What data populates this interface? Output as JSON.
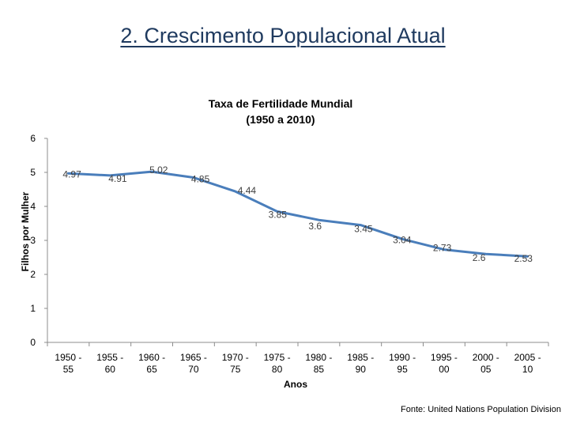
{
  "slide_title": "2. Crescimento Populacional Atual",
  "source": "Fonte: United  Nations Population Division",
  "chart_data": {
    "type": "line",
    "title_lines": [
      "Taxa de Fertilidade Mundial",
      "(1950 a 2010)"
    ],
    "xlabel": "Anos",
    "ylabel": "Filhos por Mulher",
    "ylim": [
      0,
      6
    ],
    "yticks": [
      "0",
      "1",
      "2",
      "3",
      "4",
      "5",
      "6"
    ],
    "categories": [
      [
        "1950 -",
        "55"
      ],
      [
        "1955 -",
        "60"
      ],
      [
        "1960 -",
        "65"
      ],
      [
        "1965 -",
        "70"
      ],
      [
        "1970 -",
        "75"
      ],
      [
        "1975 -",
        "80"
      ],
      [
        "1980 -",
        "85"
      ],
      [
        "1985 -",
        "90"
      ],
      [
        "1990 -",
        "95"
      ],
      [
        "1995 -",
        "00"
      ],
      [
        "2000 -",
        "05"
      ],
      [
        "2005 -",
        "10"
      ]
    ],
    "values": [
      4.97,
      4.91,
      5.02,
      4.85,
      4.44,
      3.85,
      3.6,
      3.45,
      3.04,
      2.73,
      2.6,
      2.53
    ],
    "data_labels": [
      "4.97",
      "4.91",
      "5.02",
      "4.85",
      "4.44",
      "3.85",
      "3.6",
      "3.45",
      "3.04",
      "2.73",
      "2.6",
      "2.53"
    ],
    "line_color": "#4a7ebb",
    "grid": false,
    "legend": "none"
  }
}
